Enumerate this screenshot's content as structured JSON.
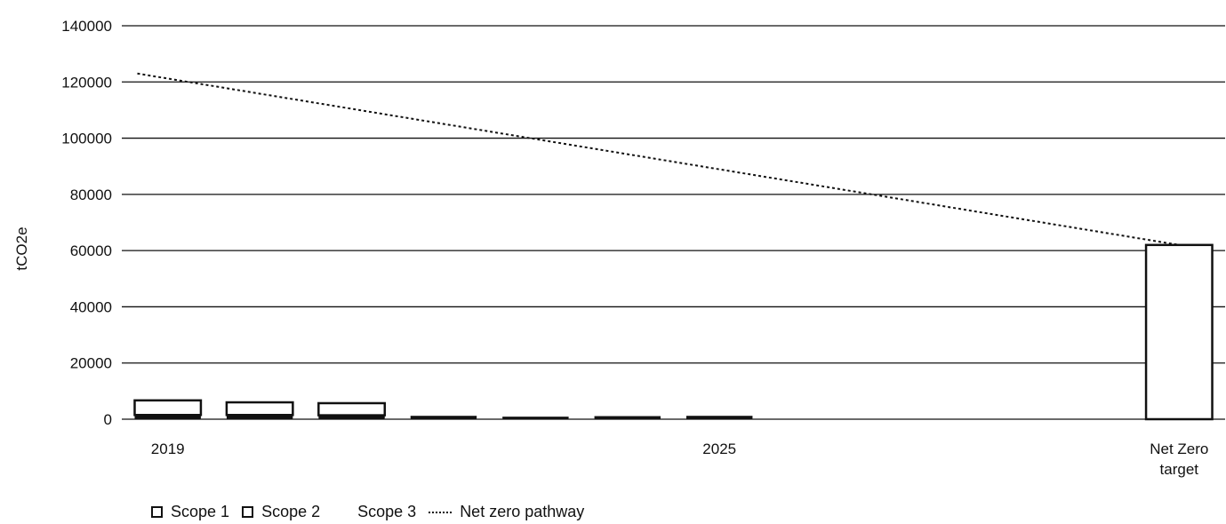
{
  "chart_data": {
    "type": "bar",
    "stacked": true,
    "ylabel": "tCO2e",
    "ylim": [
      0,
      140000
    ],
    "y_ticks": [
      "0",
      "20000",
      "40000",
      "60000",
      "80000",
      "100000",
      "120000",
      "140000"
    ],
    "y_tick_values": [
      0,
      20000,
      40000,
      60000,
      80000,
      100000,
      120000,
      140000
    ],
    "categories": [
      "2019",
      "",
      "",
      "",
      "",
      "",
      "2025",
      "",
      "",
      "",
      "",
      "Net Zero target"
    ],
    "x_tick_labels": [
      {
        "index": 0,
        "text": "2019"
      },
      {
        "index": 6,
        "text": "2025"
      },
      {
        "index": 11,
        "lines": [
          "Net Zero",
          "target"
        ]
      }
    ],
    "series": [
      {
        "name": "Scope 1",
        "values": [
          1500,
          1500,
          1400,
          1200,
          900,
          1100,
          1200,
          null,
          null,
          null,
          null,
          0
        ]
      },
      {
        "name": "Scope 2",
        "values": [
          5200,
          4500,
          4300,
          0,
          0,
          0,
          0,
          null,
          null,
          null,
          null,
          62000
        ]
      },
      {
        "name": "Scope 3",
        "values": [
          0,
          0,
          0,
          0,
          0,
          0,
          0,
          null,
          null,
          null,
          null,
          0
        ]
      }
    ],
    "pathway": {
      "name": "Net zero pathway",
      "points": [
        {
          "category": "2019",
          "value": 123000
        },
        {
          "category": "Net Zero target",
          "value": 62000
        }
      ]
    },
    "grid": true,
    "legend_position": "bottom-left"
  },
  "legend": {
    "scope1": "Scope 1",
    "scope2": "Scope 2",
    "scope3": "Scope 3",
    "pathway": "Net zero pathway"
  }
}
